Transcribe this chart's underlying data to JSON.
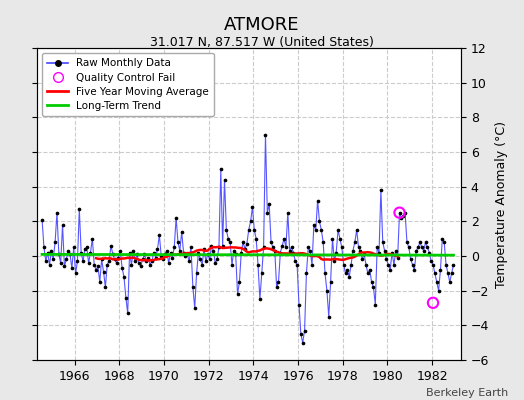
{
  "title": "ATMORE",
  "subtitle": "31.017 N, 87.517 W (United States)",
  "ylabel": "Temperature Anomaly (°C)",
  "credit": "Berkeley Earth",
  "ylim": [
    -6,
    12
  ],
  "yticks": [
    -6,
    -4,
    -2,
    0,
    2,
    4,
    6,
    8,
    10,
    12
  ],
  "xlim": [
    1964.3,
    1983.3
  ],
  "xticks": [
    1966,
    1968,
    1970,
    1972,
    1974,
    1976,
    1978,
    1980,
    1982
  ],
  "fig_bg_color": "#e8e8e8",
  "plot_bg_color": "#ffffff",
  "grid_color": "#cccccc",
  "raw_line_color": "#4444ff",
  "raw_dot_color": "#000000",
  "ma_color": "#ff0000",
  "trend_color": "#00cc00",
  "qc_color": "#ff00ff",
  "monthly_data": [
    1964.542,
    2.1,
    1964.625,
    0.5,
    1964.708,
    -0.3,
    1964.792,
    0.2,
    1964.875,
    -0.5,
    1964.958,
    0.3,
    1965.042,
    -0.2,
    1965.125,
    0.8,
    1965.208,
    2.5,
    1965.292,
    0.1,
    1965.375,
    -0.4,
    1965.458,
    1.8,
    1965.542,
    -0.6,
    1965.625,
    -0.2,
    1965.708,
    0.3,
    1965.792,
    0.1,
    1965.875,
    -0.7,
    1965.958,
    0.5,
    1966.042,
    -1.0,
    1966.125,
    -0.3,
    1966.208,
    2.7,
    1966.292,
    0.2,
    1966.375,
    -0.3,
    1966.458,
    0.4,
    1966.542,
    0.5,
    1966.625,
    -0.4,
    1966.708,
    0.2,
    1966.792,
    1.0,
    1966.875,
    -0.5,
    1966.958,
    -0.8,
    1967.042,
    -0.6,
    1967.125,
    -1.5,
    1967.208,
    -0.2,
    1967.292,
    -0.9,
    1967.375,
    -1.8,
    1967.458,
    -0.5,
    1967.542,
    -0.3,
    1967.625,
    0.6,
    1967.708,
    0.1,
    1967.792,
    -0.2,
    1967.875,
    -0.4,
    1967.958,
    -0.1,
    1968.042,
    0.3,
    1968.125,
    -0.7,
    1968.208,
    -1.2,
    1968.292,
    -2.4,
    1968.375,
    -3.3,
    1968.458,
    0.2,
    1968.542,
    -0.5,
    1968.625,
    0.3,
    1968.708,
    -0.3,
    1968.792,
    0.1,
    1968.875,
    -0.4,
    1968.958,
    -0.6,
    1969.042,
    -0.2,
    1969.125,
    0.1,
    1969.208,
    -0.3,
    1969.292,
    -0.1,
    1969.375,
    -0.5,
    1969.458,
    -0.3,
    1969.542,
    0.2,
    1969.625,
    -0.1,
    1969.708,
    0.4,
    1969.792,
    1.2,
    1969.875,
    0.0,
    1969.958,
    -0.2,
    1970.042,
    0.1,
    1970.125,
    0.3,
    1970.208,
    -0.4,
    1970.292,
    0.2,
    1970.375,
    -0.1,
    1970.458,
    0.5,
    1970.542,
    2.2,
    1970.625,
    0.8,
    1970.708,
    0.3,
    1970.792,
    1.4,
    1970.875,
    0.2,
    1970.958,
    0.0,
    1971.042,
    0.1,
    1971.125,
    -0.3,
    1971.208,
    0.5,
    1971.292,
    -1.8,
    1971.375,
    -3.0,
    1971.458,
    -1.0,
    1971.542,
    0.2,
    1971.625,
    -0.2,
    1971.708,
    -0.5,
    1971.792,
    0.4,
    1971.875,
    -0.3,
    1971.958,
    0.1,
    1972.042,
    -0.2,
    1972.125,
    0.6,
    1972.208,
    0.3,
    1972.292,
    -0.4,
    1972.375,
    -0.2,
    1972.458,
    0.5,
    1972.542,
    5.0,
    1972.625,
    0.6,
    1972.708,
    4.4,
    1972.792,
    1.5,
    1972.875,
    1.0,
    1972.958,
    0.8,
    1973.042,
    -0.5,
    1973.125,
    0.3,
    1973.208,
    0.1,
    1973.292,
    -2.2,
    1973.375,
    -1.5,
    1973.458,
    0.2,
    1973.542,
    0.8,
    1973.625,
    0.4,
    1973.708,
    0.7,
    1973.792,
    1.5,
    1973.875,
    2.0,
    1973.958,
    2.8,
    1974.042,
    1.5,
    1974.125,
    1.0,
    1974.208,
    -0.5,
    1974.292,
    -2.5,
    1974.375,
    -1.0,
    1974.458,
    0.5,
    1974.542,
    7.0,
    1974.625,
    2.5,
    1974.708,
    3.0,
    1974.792,
    0.8,
    1974.875,
    0.5,
    1974.958,
    0.3,
    1975.042,
    -1.8,
    1975.125,
    -1.5,
    1975.208,
    0.2,
    1975.292,
    0.6,
    1975.375,
    1.0,
    1975.458,
    0.5,
    1975.542,
    2.5,
    1975.625,
    0.3,
    1975.708,
    0.5,
    1975.792,
    0.2,
    1975.875,
    -0.3,
    1975.958,
    -0.5,
    1976.042,
    -2.8,
    1976.125,
    -4.5,
    1976.208,
    -5.0,
    1976.292,
    -4.3,
    1976.375,
    -1.0,
    1976.458,
    0.5,
    1976.542,
    0.3,
    1976.625,
    -0.5,
    1976.708,
    1.8,
    1976.792,
    1.5,
    1976.875,
    3.2,
    1976.958,
    2.0,
    1977.042,
    1.5,
    1977.125,
    0.8,
    1977.208,
    -1.0,
    1977.292,
    -2.0,
    1977.375,
    -3.5,
    1977.458,
    -1.5,
    1977.542,
    1.0,
    1977.625,
    -0.3,
    1977.708,
    0.2,
    1977.792,
    1.5,
    1977.875,
    1.0,
    1977.958,
    0.5,
    1978.042,
    -0.5,
    1978.125,
    -1.0,
    1978.208,
    -0.8,
    1978.292,
    -1.2,
    1978.375,
    -0.5,
    1978.458,
    0.3,
    1978.542,
    0.8,
    1978.625,
    1.5,
    1978.708,
    0.5,
    1978.792,
    0.3,
    1978.875,
    -0.2,
    1978.958,
    0.1,
    1979.042,
    -0.5,
    1979.125,
    -1.0,
    1979.208,
    -0.8,
    1979.292,
    -1.5,
    1979.375,
    -1.8,
    1979.458,
    -2.8,
    1979.542,
    0.5,
    1979.625,
    0.2,
    1979.708,
    3.8,
    1979.792,
    0.8,
    1979.875,
    0.3,
    1979.958,
    -0.2,
    1980.042,
    -0.5,
    1980.125,
    -0.8,
    1980.208,
    0.2,
    1980.292,
    -0.5,
    1980.375,
    0.3,
    1980.458,
    -0.1,
    1980.542,
    2.5,
    1980.625,
    2.2,
    1980.708,
    2.3,
    1980.792,
    2.5,
    1980.875,
    0.8,
    1980.958,
    0.5,
    1981.042,
    -0.2,
    1981.125,
    -0.5,
    1981.208,
    -0.8,
    1981.292,
    0.3,
    1981.375,
    0.5,
    1981.458,
    0.8,
    1981.542,
    0.5,
    1981.625,
    0.3,
    1981.708,
    0.8,
    1981.792,
    0.5,
    1981.875,
    0.2,
    1981.958,
    -0.3,
    1982.042,
    -0.5,
    1982.125,
    -1.0,
    1982.208,
    -1.5,
    1982.292,
    -2.0,
    1982.375,
    -0.8,
    1982.458,
    1.0,
    1982.542,
    0.8,
    1982.625,
    -0.5,
    1982.708,
    -1.0,
    1982.792,
    -1.5,
    1982.875,
    -1.0,
    1982.958,
    -0.5
  ],
  "qc_fail_points": [
    [
      1980.542,
      2.5
    ],
    [
      1982.042,
      -2.7
    ]
  ]
}
